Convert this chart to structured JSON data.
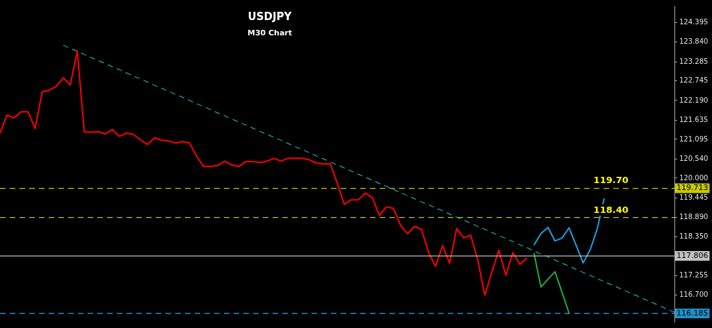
{
  "chart_data": {
    "type": "line",
    "title": "USDJPY",
    "subtitle": "M30 Chart",
    "ylim": [
      115.95,
      124.85
    ],
    "categories": [
      null,
      null,
      null,
      null,
      null,
      null,
      null,
      null,
      null,
      null,
      null,
      null,
      null,
      null,
      null,
      null,
      null,
      null,
      null,
      null,
      null,
      null,
      null,
      null,
      null,
      null,
      null,
      null,
      null,
      null,
      null,
      null,
      null,
      null,
      null,
      null,
      null,
      null,
      null,
      null,
      null,
      null,
      null,
      null,
      null,
      null,
      null,
      null,
      null,
      null,
      null,
      null,
      null,
      null,
      null,
      null,
      null,
      null,
      null,
      null,
      null,
      null,
      null,
      null,
      null,
      null,
      null,
      null,
      null,
      null,
      null,
      null,
      null,
      null,
      null,
      null,
      null,
      null,
      null,
      null,
      null,
      null,
      null,
      null,
      null,
      null,
      null,
      null,
      null,
      null,
      null,
      null,
      null,
      null,
      null,
      null,
      null
    ],
    "yticks": [
      {
        "value": 124.395,
        "label": "124.395"
      },
      {
        "value": 123.84,
        "label": "123.840"
      },
      {
        "value": 123.285,
        "label": "123.285"
      },
      {
        "value": 122.745,
        "label": "122.745"
      },
      {
        "value": 122.19,
        "label": "122.190"
      },
      {
        "value": 121.635,
        "label": "121.635"
      },
      {
        "value": 121.095,
        "label": "121.095"
      },
      {
        "value": 120.54,
        "label": "120.540"
      },
      {
        "value": 120.0,
        "label": "120.000"
      },
      {
        "value": 119.445,
        "label": "119.445"
      },
      {
        "value": 118.89,
        "label": "118.890"
      },
      {
        "value": 118.35,
        "label": "118.350"
      },
      {
        "value": 117.255,
        "label": "117.255"
      },
      {
        "value": 116.7,
        "label": "116.700"
      }
    ],
    "tick_labels": "y",
    "legend": false,
    "marker": "none",
    "series": [
      {
        "color": "#ff0000",
        "values": [
          121.27,
          121.78,
          121.7,
          121.87,
          121.87,
          121.4,
          122.44,
          122.48,
          122.59,
          122.83,
          122.63,
          123.59,
          121.3,
          121.3,
          121.31,
          121.25,
          121.37,
          121.18,
          121.27,
          121.23,
          121.08,
          120.95,
          121.14,
          121.07,
          121.05,
          120.99,
          121.03,
          120.99,
          120.61,
          120.33,
          120.33,
          120.36,
          120.48,
          120.37,
          120.33,
          120.47,
          120.47,
          120.44,
          120.48,
          120.56,
          120.48,
          120.56,
          120.56,
          120.56,
          120.52,
          120.43,
          120.4,
          120.41,
          119.86,
          119.26,
          119.39,
          119.39,
          119.58,
          119.45,
          118.95,
          119.19,
          119.15,
          118.67,
          118.43,
          118.64,
          118.56,
          117.9,
          117.51,
          118.1,
          117.6,
          118.58,
          118.32,
          118.39,
          117.7,
          116.7,
          117.34,
          117.97,
          117.26,
          117.9,
          117.57,
          117.75,
          null,
          null,
          null,
          null,
          null,
          null,
          null,
          null,
          null,
          null,
          null,
          null,
          null,
          null,
          null,
          null,
          null,
          null,
          null,
          null,
          null
        ]
      },
      {
        "color": "#1fa9a9",
        "line_style": "dashed",
        "values": [
          null,
          null,
          null,
          null,
          null,
          null,
          null,
          null,
          null,
          123.75,
          123.66,
          123.58,
          123.49,
          123.4,
          123.32,
          123.23,
          123.14,
          123.06,
          122.97,
          122.88,
          122.8,
          122.71,
          122.62,
          122.54,
          122.45,
          122.36,
          122.28,
          122.19,
          122.1,
          122.02,
          121.93,
          121.84,
          121.76,
          121.67,
          121.58,
          121.5,
          121.41,
          121.32,
          121.24,
          121.15,
          121.07,
          120.98,
          120.89,
          120.81,
          120.72,
          120.63,
          120.55,
          120.46,
          120.37,
          120.29,
          120.2,
          120.11,
          120.03,
          119.94,
          119.85,
          119.77,
          119.68,
          119.59,
          119.51,
          119.42,
          119.33,
          119.25,
          119.16,
          119.08,
          118.99,
          118.9,
          118.82,
          118.73,
          118.64,
          118.56,
          118.47,
          118.38,
          118.3,
          118.21,
          118.12,
          118.04,
          117.95,
          117.86,
          117.78,
          117.69,
          117.6,
          117.52,
          117.43,
          117.34,
          117.26,
          117.17,
          117.08,
          117.0,
          116.91,
          116.82,
          116.74,
          116.65,
          116.56,
          116.48,
          116.39,
          116.3,
          116.22
        ]
      },
      {
        "color": "#1e9fe0",
        "values": [
          null,
          null,
          null,
          null,
          null,
          null,
          null,
          null,
          null,
          null,
          null,
          null,
          null,
          null,
          null,
          null,
          null,
          null,
          null,
          null,
          null,
          null,
          null,
          null,
          null,
          null,
          null,
          null,
          null,
          null,
          null,
          null,
          null,
          null,
          null,
          null,
          null,
          null,
          null,
          null,
          null,
          null,
          null,
          null,
          null,
          null,
          null,
          null,
          null,
          null,
          null,
          null,
          null,
          null,
          null,
          null,
          null,
          null,
          null,
          null,
          null,
          null,
          null,
          null,
          null,
          null,
          null,
          null,
          null,
          null,
          null,
          null,
          null,
          null,
          null,
          null,
          118.11,
          118.44,
          118.61,
          118.23,
          118.31,
          118.6,
          118.11,
          117.61,
          117.98,
          118.56,
          119.43,
          null,
          null,
          null,
          null,
          null,
          null,
          null,
          null,
          null,
          null
        ]
      },
      {
        "color": "#22aa44",
        "values": [
          null,
          null,
          null,
          null,
          null,
          null,
          null,
          null,
          null,
          null,
          null,
          null,
          null,
          null,
          null,
          null,
          null,
          null,
          null,
          null,
          null,
          null,
          null,
          null,
          null,
          null,
          null,
          null,
          null,
          null,
          null,
          null,
          null,
          null,
          null,
          null,
          null,
          null,
          null,
          null,
          null,
          null,
          null,
          null,
          null,
          null,
          null,
          null,
          null,
          null,
          null,
          null,
          null,
          null,
          null,
          null,
          null,
          null,
          null,
          null,
          null,
          null,
          null,
          null,
          null,
          null,
          null,
          null,
          null,
          null,
          null,
          null,
          null,
          null,
          null,
          null,
          117.89,
          116.93,
          117.15,
          117.36,
          116.78,
          116.19,
          null,
          null,
          null,
          null,
          null,
          null,
          null,
          null,
          null,
          null,
          null,
          null,
          null,
          null,
          null
        ]
      }
    ],
    "ref_lines": [
      {
        "axis": "y",
        "value": 119.713,
        "label": "119.713",
        "color": "#c8c800",
        "line_style": "dashed"
      },
      {
        "axis": "y",
        "value": 118.89,
        "color": "#c8c800",
        "line_style": "dashed"
      },
      {
        "axis": "y",
        "value": 117.806,
        "label": "117.806",
        "color": "#c0c0c0",
        "line_style": "solid"
      },
      {
        "axis": "y",
        "value": 116.185,
        "label": "116.185",
        "color": "#1e90c8",
        "line_style": "dashed"
      }
    ],
    "annotations": [
      {
        "text": "119.70",
        "y": 119.713
      },
      {
        "text": "118.40",
        "y": 118.89
      }
    ]
  }
}
